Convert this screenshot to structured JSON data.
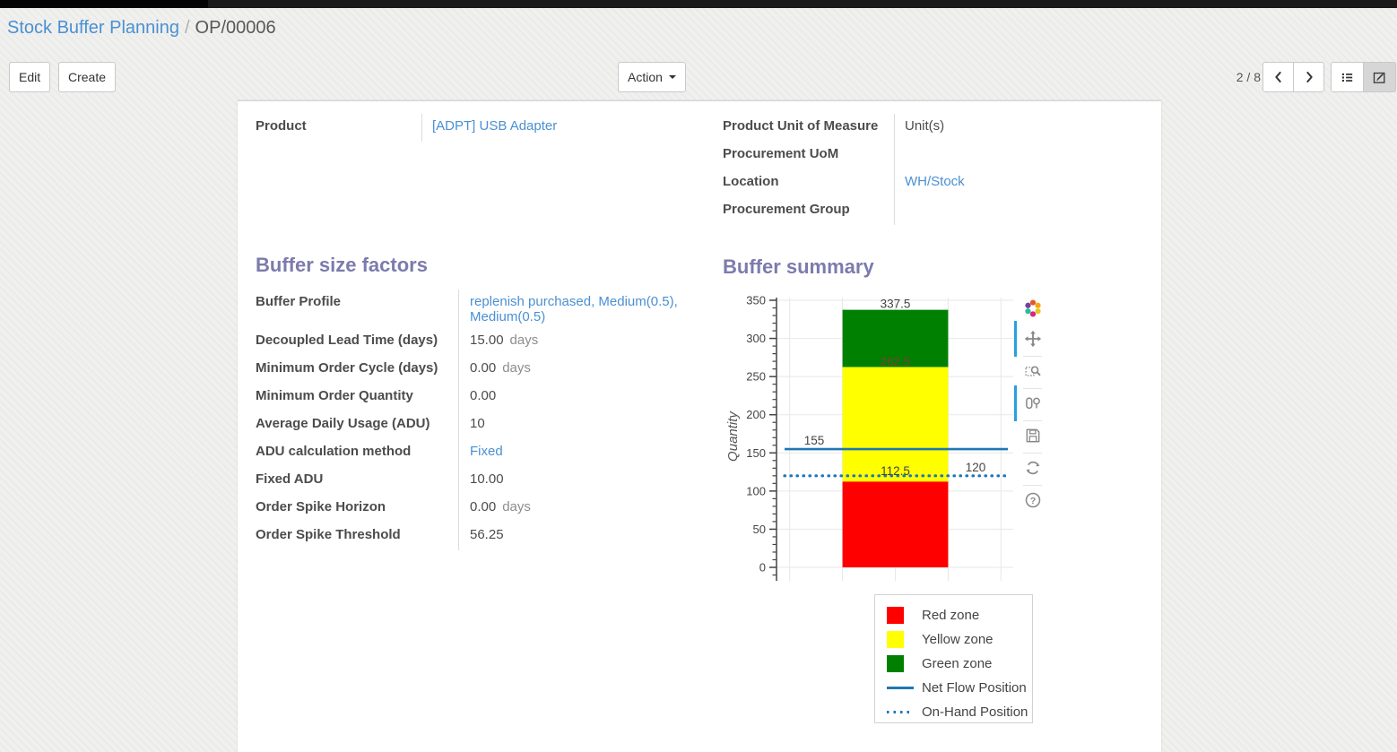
{
  "breadcrumb": {
    "parent": "Stock Buffer Planning",
    "separator": "/",
    "current": "OP/00006"
  },
  "control_panel": {
    "edit": "Edit",
    "create": "Create",
    "action": "Action",
    "pager": "2 / 8"
  },
  "form": {
    "product_left": [
      {
        "label": "Product",
        "value": "[ADPT] USB Adapter",
        "link": true
      }
    ],
    "product_right": [
      {
        "label": "Product Unit of Measure",
        "value": "Unit(s)",
        "link": false
      },
      {
        "label": "Procurement UoM",
        "value": "",
        "link": false
      },
      {
        "label": "Location",
        "value": "WH/Stock",
        "link": true
      },
      {
        "label": "Procurement Group",
        "value": "",
        "link": false
      }
    ],
    "buffer_factors_title": "Buffer size factors",
    "buffer_factors": [
      {
        "label": "Buffer Profile",
        "value": "replenish purchased, Medium(0.5), Medium(0.5)",
        "link": true
      },
      {
        "label": "Decoupled Lead Time (days)",
        "value": "15.00",
        "suffix": "days"
      },
      {
        "label": "Minimum Order Cycle (days)",
        "value": "0.00",
        "suffix": "days"
      },
      {
        "label": "Minimum Order Quantity",
        "value": "0.00"
      },
      {
        "label": "Average Daily Usage (ADU)",
        "value": "10"
      },
      {
        "label": "ADU calculation method",
        "value": "Fixed",
        "link": true
      },
      {
        "label": "Fixed ADU",
        "value": "10.00"
      },
      {
        "label": "Order Spike Horizon",
        "value": "0.00",
        "suffix": "days"
      },
      {
        "label": "Order Spike Threshold",
        "value": "56.25"
      }
    ],
    "buffer_summary_title": "Buffer summary"
  },
  "chart_data": {
    "type": "bar",
    "title": "Buffer summary",
    "ylabel": "Quantity",
    "ylim": [
      0,
      350
    ],
    "ytick_step": 50,
    "minor_tick_step": 10,
    "grid": true,
    "zones": [
      {
        "name": "Red zone",
        "color": "#ff0000",
        "from": 0,
        "to": 112.5
      },
      {
        "name": "Yellow zone",
        "color": "#ffff00",
        "from": 112.5,
        "to": 262.5
      },
      {
        "name": "Green zone",
        "color": "#008000",
        "from": 262.5,
        "to": 337.5
      }
    ],
    "lines": [
      {
        "name": "Net Flow Position",
        "value": 155,
        "style": "solid",
        "color": "#1f77b4"
      },
      {
        "name": "On-Hand Position",
        "value": 120,
        "style": "dotted",
        "color": "#1f77b4"
      }
    ],
    "annotations": [
      "337.5",
      "262.5",
      "155",
      "120",
      "112.5"
    ],
    "legend_position": "bottom-right",
    "legend": [
      {
        "name": "Red zone",
        "swatch": "square",
        "color": "#ff0000"
      },
      {
        "name": "Yellow zone",
        "swatch": "square",
        "color": "#ffff00"
      },
      {
        "name": "Green zone",
        "swatch": "square",
        "color": "#008000"
      },
      {
        "name": "Net Flow Position",
        "swatch": "line",
        "color": "#1f77b4"
      },
      {
        "name": "On-Hand Position",
        "swatch": "dots",
        "color": "#1f77b4"
      }
    ]
  },
  "modebar": {
    "icons": [
      {
        "name": "plotly-logo",
        "active": false
      },
      {
        "name": "pan",
        "active": true
      },
      {
        "name": "zoom-box",
        "active": false
      },
      {
        "name": "toggle-hover",
        "active": true
      },
      {
        "name": "save",
        "active": false
      },
      {
        "name": "reset-axes",
        "active": false
      },
      {
        "name": "help",
        "active": false
      }
    ]
  }
}
